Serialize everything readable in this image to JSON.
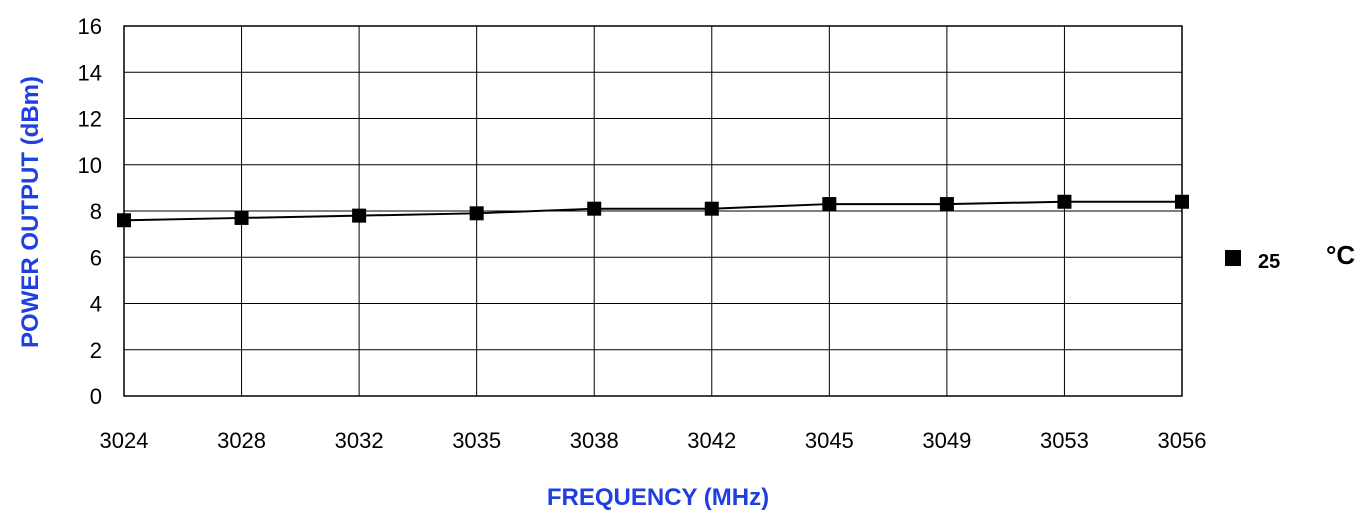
{
  "chart_data": {
    "type": "line",
    "categories": [
      "3024",
      "3028",
      "3032",
      "3035",
      "3038",
      "3042",
      "3045",
      "3049",
      "3053",
      "3056"
    ],
    "series": [
      {
        "name": "25",
        "values": [
          7.6,
          7.7,
          7.8,
          7.9,
          8.1,
          8.1,
          8.3,
          8.3,
          8.4,
          8.4
        ],
        "color": "#000000",
        "marker": "square"
      }
    ],
    "xlabel": "FREQUENCY (MHz)",
    "ylabel": "POWER OUTPUT (dBm)",
    "ylim": [
      0,
      16
    ],
    "yticks": [
      "0",
      "2",
      "4",
      "6",
      "8",
      "10",
      "12",
      "14",
      "16"
    ],
    "grid": true,
    "legend_position": "right",
    "legend_unit": "°C",
    "axis_title_color": "#1f3fe0"
  }
}
